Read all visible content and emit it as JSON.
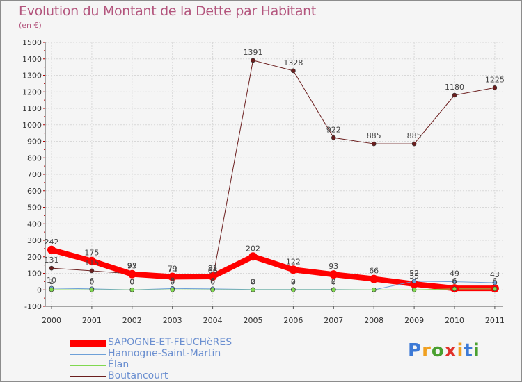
{
  "chart_data": {
    "type": "line",
    "title": "Evolution du Montant de la Dette par Habitant",
    "subtitle": "(en €)",
    "x": [
      "2000",
      "2001",
      "2002",
      "2003",
      "2004",
      "2005",
      "2006",
      "2007",
      "2008",
      "2009",
      "2010",
      "2011"
    ],
    "ylim": [
      -100,
      1500
    ],
    "yticks": [
      "-100",
      "0",
      "100",
      "200",
      "300",
      "400",
      "500",
      "600",
      "700",
      "800",
      "900",
      "1000",
      "1100",
      "1200",
      "1300",
      "1400",
      "1500"
    ],
    "series": [
      {
        "name": "SAPOGNE-ET-FEUCHèRES",
        "color": "#ff0000",
        "values": [
          242,
          175,
          95,
          79,
          81,
          202,
          122,
          93,
          66,
          35,
          9,
          9
        ],
        "labels": [
          "242",
          "175",
          "95",
          "79",
          "81",
          "202",
          "122",
          "93",
          "66",
          "35",
          "",
          ""
        ]
      },
      {
        "name": "Hannogne-Saint-Martin",
        "color": "#6ea0d8",
        "values": [
          10,
          6,
          0,
          8,
          6,
          2,
          2,
          2,
          0,
          52,
          49,
          43
        ],
        "labels": [
          "10",
          "6",
          "0",
          "8",
          "6",
          "2",
          "2",
          "2",
          "",
          "52",
          "49",
          "43"
        ]
      },
      {
        "name": "Élan",
        "color": "#80d850",
        "values": [
          1,
          0,
          0,
          0,
          0,
          0,
          0,
          0,
          0,
          0,
          6,
          6
        ],
        "labels": [
          "1",
          "0",
          "0",
          "0",
          "0",
          "0",
          "0",
          "0",
          "",
          "",
          "6",
          "6"
        ]
      },
      {
        "name": "Boutancourt",
        "color": "#6b1e1e",
        "values": [
          131,
          115,
          97,
          73,
          66,
          1391,
          1328,
          922,
          885,
          885,
          1180,
          1225
        ],
        "labels": [
          "131",
          "115",
          "97",
          "73",
          "66",
          "1391",
          "1328",
          "922",
          "885",
          "885",
          "1180",
          "1225"
        ]
      }
    ]
  },
  "logo": {
    "letters": [
      "P",
      "r",
      "o",
      "x",
      "i",
      "t",
      "i"
    ],
    "colors": [
      "#3d7ad6",
      "#f0a020",
      "#4aa030",
      "#e0302a",
      "#f0a020",
      "#3d7ad6",
      "#4aa030"
    ]
  }
}
